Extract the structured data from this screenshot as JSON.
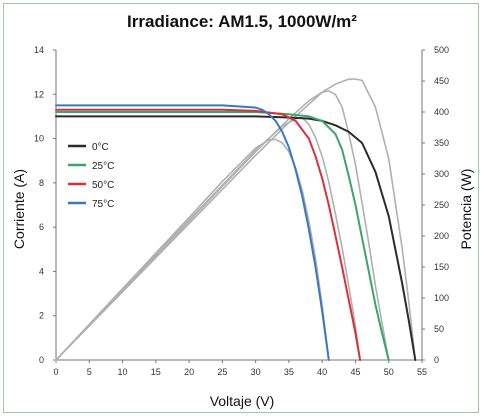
{
  "chart_data": {
    "type": "line",
    "title": "Irradiance: AM1.5, 1000W/m²",
    "xlabel": "Voltaje (V)",
    "ylabel": "Corriente (A)",
    "y2label": "Potencia (W)",
    "xlim": [
      0,
      55
    ],
    "ylim": [
      0,
      14
    ],
    "y2lim": [
      0,
      500
    ],
    "xticks": [
      "0",
      "5",
      "10",
      "15",
      "20",
      "25",
      "30",
      "35",
      "40",
      "45",
      "50",
      "55"
    ],
    "yticks": [
      "0",
      "2",
      "4",
      "6",
      "8",
      "10",
      "12",
      "14"
    ],
    "y2ticks": [
      "0",
      "50",
      "100",
      "150",
      "200",
      "250",
      "300",
      "350",
      "400",
      "450",
      "500"
    ],
    "legend_position": "left-middle",
    "grid": false,
    "series": [
      {
        "name": "0°C",
        "color": "#2b2b2b",
        "axis": "current",
        "x": [
          0,
          5,
          10,
          15,
          20,
          25,
          30,
          35,
          38,
          40,
          42,
          44,
          46,
          48,
          50,
          52,
          53,
          54
        ],
        "y": [
          11.0,
          11.0,
          11.0,
          11.0,
          11.0,
          11.0,
          11.0,
          10.95,
          10.9,
          10.8,
          10.6,
          10.3,
          9.8,
          8.5,
          6.5,
          3.5,
          1.8,
          0
        ]
      },
      {
        "name": "25°C",
        "color": "#3aa66a",
        "axis": "current",
        "x": [
          0,
          5,
          10,
          15,
          20,
          25,
          30,
          35,
          38,
          40,
          42,
          43,
          44,
          45,
          46,
          47,
          48,
          49,
          50
        ],
        "y": [
          11.2,
          11.2,
          11.2,
          11.2,
          11.2,
          11.2,
          11.2,
          11.1,
          11.0,
          10.8,
          10.2,
          9.5,
          8.3,
          7.0,
          5.5,
          4.0,
          2.5,
          1.2,
          0
        ]
      },
      {
        "name": "50°C",
        "color": "#d9303a",
        "axis": "current",
        "x": [
          0,
          5,
          10,
          15,
          20,
          25,
          30,
          34,
          36,
          38,
          39,
          40,
          41,
          42,
          43,
          44,
          45,
          45.7
        ],
        "y": [
          11.3,
          11.3,
          11.3,
          11.3,
          11.3,
          11.3,
          11.25,
          11.1,
          10.8,
          10.0,
          9.2,
          8.2,
          7.0,
          5.6,
          4.2,
          2.7,
          1.2,
          0
        ]
      },
      {
        "name": "75°C",
        "color": "#3a78c2",
        "axis": "current",
        "x": [
          0,
          5,
          10,
          15,
          20,
          25,
          30,
          31,
          32,
          33,
          34,
          35,
          36,
          37,
          38,
          39,
          40,
          41
        ],
        "y": [
          11.5,
          11.5,
          11.5,
          11.5,
          11.5,
          11.5,
          11.4,
          11.3,
          11.1,
          10.8,
          10.3,
          9.6,
          8.6,
          7.4,
          5.9,
          4.2,
          2.2,
          0
        ]
      },
      {
        "name": "",
        "color": "#b0b0b0",
        "axis": "power",
        "x": [
          0,
          10,
          20,
          30,
          35,
          40,
          42,
          44,
          45,
          46,
          48,
          50,
          52,
          53,
          54
        ],
        "y": [
          0,
          110,
          220,
          330,
          383,
          432,
          445,
          453,
          453,
          451,
          408,
          325,
          182,
          95,
          0
        ]
      },
      {
        "name": "",
        "color": "#b0b0b0",
        "axis": "power",
        "x": [
          0,
          10,
          20,
          30,
          35,
          38,
          40,
          41,
          42,
          43,
          44,
          45,
          46,
          47,
          48,
          49,
          50
        ],
        "y": [
          0,
          112,
          224,
          336,
          389,
          418,
          432,
          434,
          428,
          408,
          365,
          315,
          253,
          188,
          120,
          59,
          0
        ]
      },
      {
        "name": "",
        "color": "#b0b0b0",
        "axis": "power",
        "x": [
          0,
          10,
          20,
          30,
          34,
          36,
          37,
          38,
          39,
          40,
          41,
          42,
          43,
          44,
          45,
          45.7
        ],
        "y": [
          0,
          113,
          226,
          338,
          377,
          389,
          391,
          380,
          359,
          328,
          287,
          235,
          181,
          119,
          54,
          0
        ]
      },
      {
        "name": "",
        "color": "#b0b0b0",
        "axis": "power",
        "x": [
          0,
          10,
          20,
          25,
          30,
          32,
          33,
          34,
          35,
          36,
          37,
          38,
          39,
          40,
          41
        ],
        "y": [
          0,
          115,
          230,
          288,
          342,
          355,
          356,
          350,
          336,
          310,
          274,
          224,
          164,
          88,
          0
        ]
      }
    ]
  }
}
